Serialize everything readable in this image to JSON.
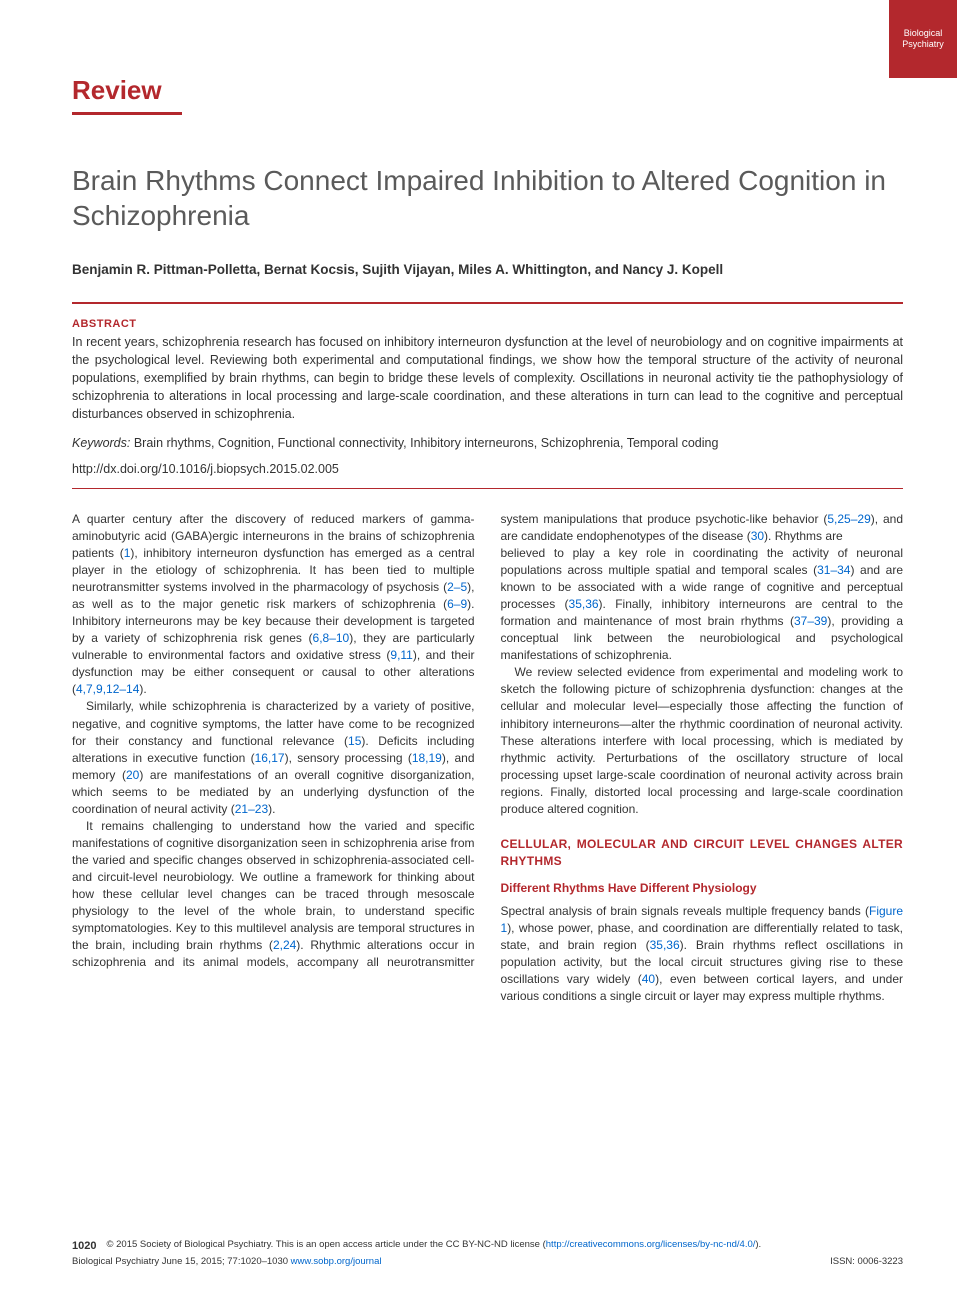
{
  "colors": {
    "brand_red": "#b3282d",
    "link_blue": "#0066cc",
    "text": "#333333",
    "title_color": "#5a5a5a",
    "background": "#ffffff"
  },
  "corner_badge": "Biological Psychiatry",
  "review_label": "Review",
  "title": "Brain Rhythms Connect Impaired Inhibition to Altered Cognition in Schizophrenia",
  "authors": "Benjamin R. Pittman-Polletta, Bernat Kocsis, Sujith Vijayan, Miles A. Whittington, and Nancy J. Kopell",
  "abstract": {
    "label": "ABSTRACT",
    "text": "In recent years, schizophrenia research has focused on inhibitory interneuron dysfunction at the level of neurobiology and on cognitive impairments at the psychological level. Reviewing both experimental and computational findings, we show how the temporal structure of the activity of neuronal populations, exemplified by brain rhythms, can begin to bridge these levels of complexity. Oscillations in neuronal activity tie the pathophysiology of schizophrenia to alterations in local processing and large-scale coordination, and these alterations in turn can lead to the cognitive and perceptual disturbances observed in schizophrenia."
  },
  "keywords": {
    "label": "Keywords:",
    "text": "Brain rhythms, Cognition, Functional connectivity, Inhibitory interneurons, Schizophrenia, Temporal coding"
  },
  "doi": "http://dx.doi.org/10.1016/j.biopsych.2015.02.005",
  "body": {
    "p1a": "A quarter century after the discovery of reduced markers of gamma-aminobutyric acid (GABA)ergic interneurons in the brains of schizophrenia patients (",
    "r1": "1",
    "p1b": "), inhibitory interneuron dysfunction has emerged as a central player in the etiology of schizophrenia. It has been tied to multiple neurotransmitter systems involved in the pharmacology of psychosis (",
    "r2": "2–5",
    "p1c": "), as well as to the major genetic risk markers of schizophrenia (",
    "r3": "6–9",
    "p1d": "). Inhibitory interneurons may be key because their development is targeted by a variety of schizophrenia risk genes (",
    "r4": "6,8–10",
    "p1e": "), they are particularly vulnerable to environmental factors and oxidative stress (",
    "r5": "9,11",
    "p1f": "), and their dysfunction may be either consequent or causal to other alterations (",
    "r6": "4,7,9,12–14",
    "p1g": ").",
    "p2a": "Similarly, while schizophrenia is characterized by a variety of positive, negative, and cognitive symptoms, the latter have come to be recognized for their constancy and functional relevance (",
    "r7": "15",
    "p2b": "). Deficits including alterations in executive function (",
    "r8": "16,17",
    "p2c": "), sensory processing (",
    "r9": "18,19",
    "p2d": "), and memory (",
    "r10": "20",
    "p2e": ") are manifestations of an overall cognitive disorganization, which seems to be mediated by an underlying dysfunction of the coordination of neural activity (",
    "r11": "21–23",
    "p2f": ").",
    "p3a": "It remains challenging to understand how the varied and specific manifestations of cognitive disorganization seen in schizophrenia arise from the varied and specific changes observed in schizophrenia-associated cell- and circuit-level neurobiology. We outline a framework for thinking about how these cellular level changes can be traced through mesoscale physiology to the level of the whole brain, to understand specific symptomatologies. Key to this multilevel analysis are temporal structures in the brain, including brain rhythms (",
    "r12": "2,24",
    "p3b": "). Rhythmic alterations occur in schizophrenia and its animal models, accompany all neurotransmitter system manipulations that produce psychotic-like behavior (",
    "r13": "5,25–29",
    "p3c": "), and are candidate endophenotypes of the disease (",
    "r14": "30",
    "p3d": "). Rhythms are",
    "p4a": "believed to play a key role in coordinating the activity of neuronal populations across multiple spatial and temporal scales (",
    "r15": "31–34",
    "p4b": ") and are known to be associated with a wide range of cognitive and perceptual processes (",
    "r16": "35,36",
    "p4c": "). Finally, inhibitory interneurons are central to the formation and maintenance of most brain rhythms (",
    "r17": "37–39",
    "p4d": "), providing a conceptual link between the neurobiological and psychological manifestations of schizophrenia.",
    "p5": "We review selected evidence from experimental and modeling work to sketch the following picture of schizophrenia dysfunction: changes at the cellular and molecular level—especially those affecting the function of inhibitory interneurons—alter the rhythmic coordination of neuronal activity. These alterations interfere with local processing, which is mediated by rhythmic activity. Perturbations of the oscillatory structure of local processing upset large-scale coordination of neuronal activity across brain regions. Finally, distorted local processing and large-scale coordination produce altered cognition.",
    "section1": "CELLULAR, MOLECULAR AND CIRCUIT LEVEL CHANGES ALTER RHYTHMS",
    "subsection1": "Different Rhythms Have Different Physiology",
    "p6a": "Spectral analysis of brain signals reveals multiple frequency bands (",
    "r18": "Figure 1",
    "p6b": "), whose power, phase, and coordination are differentially related to task, state, and brain region (",
    "r19": "35,36",
    "p6c": "). Brain rhythms reflect oscillations in population activity, but the local circuit structures giving rise to these oscillations vary widely (",
    "r20": "40",
    "p6d": "), even between cortical layers, and under various conditions a single circuit or layer may express multiple rhythms."
  },
  "footer": {
    "page_num": "1020",
    "copyright_a": "© 2015 Society of Biological Psychiatry. This is an open access article under the CC BY-NC-ND license (",
    "cc_link": "http://creativecommons.org/licenses/by-nc-nd/4.0/",
    "copyright_b": ").",
    "journal_line": "Biological Psychiatry June 15, 2015; 77:1020–1030 ",
    "journal_link": "www.sobp.org/journal",
    "issn": "ISSN: 0006-3223"
  }
}
